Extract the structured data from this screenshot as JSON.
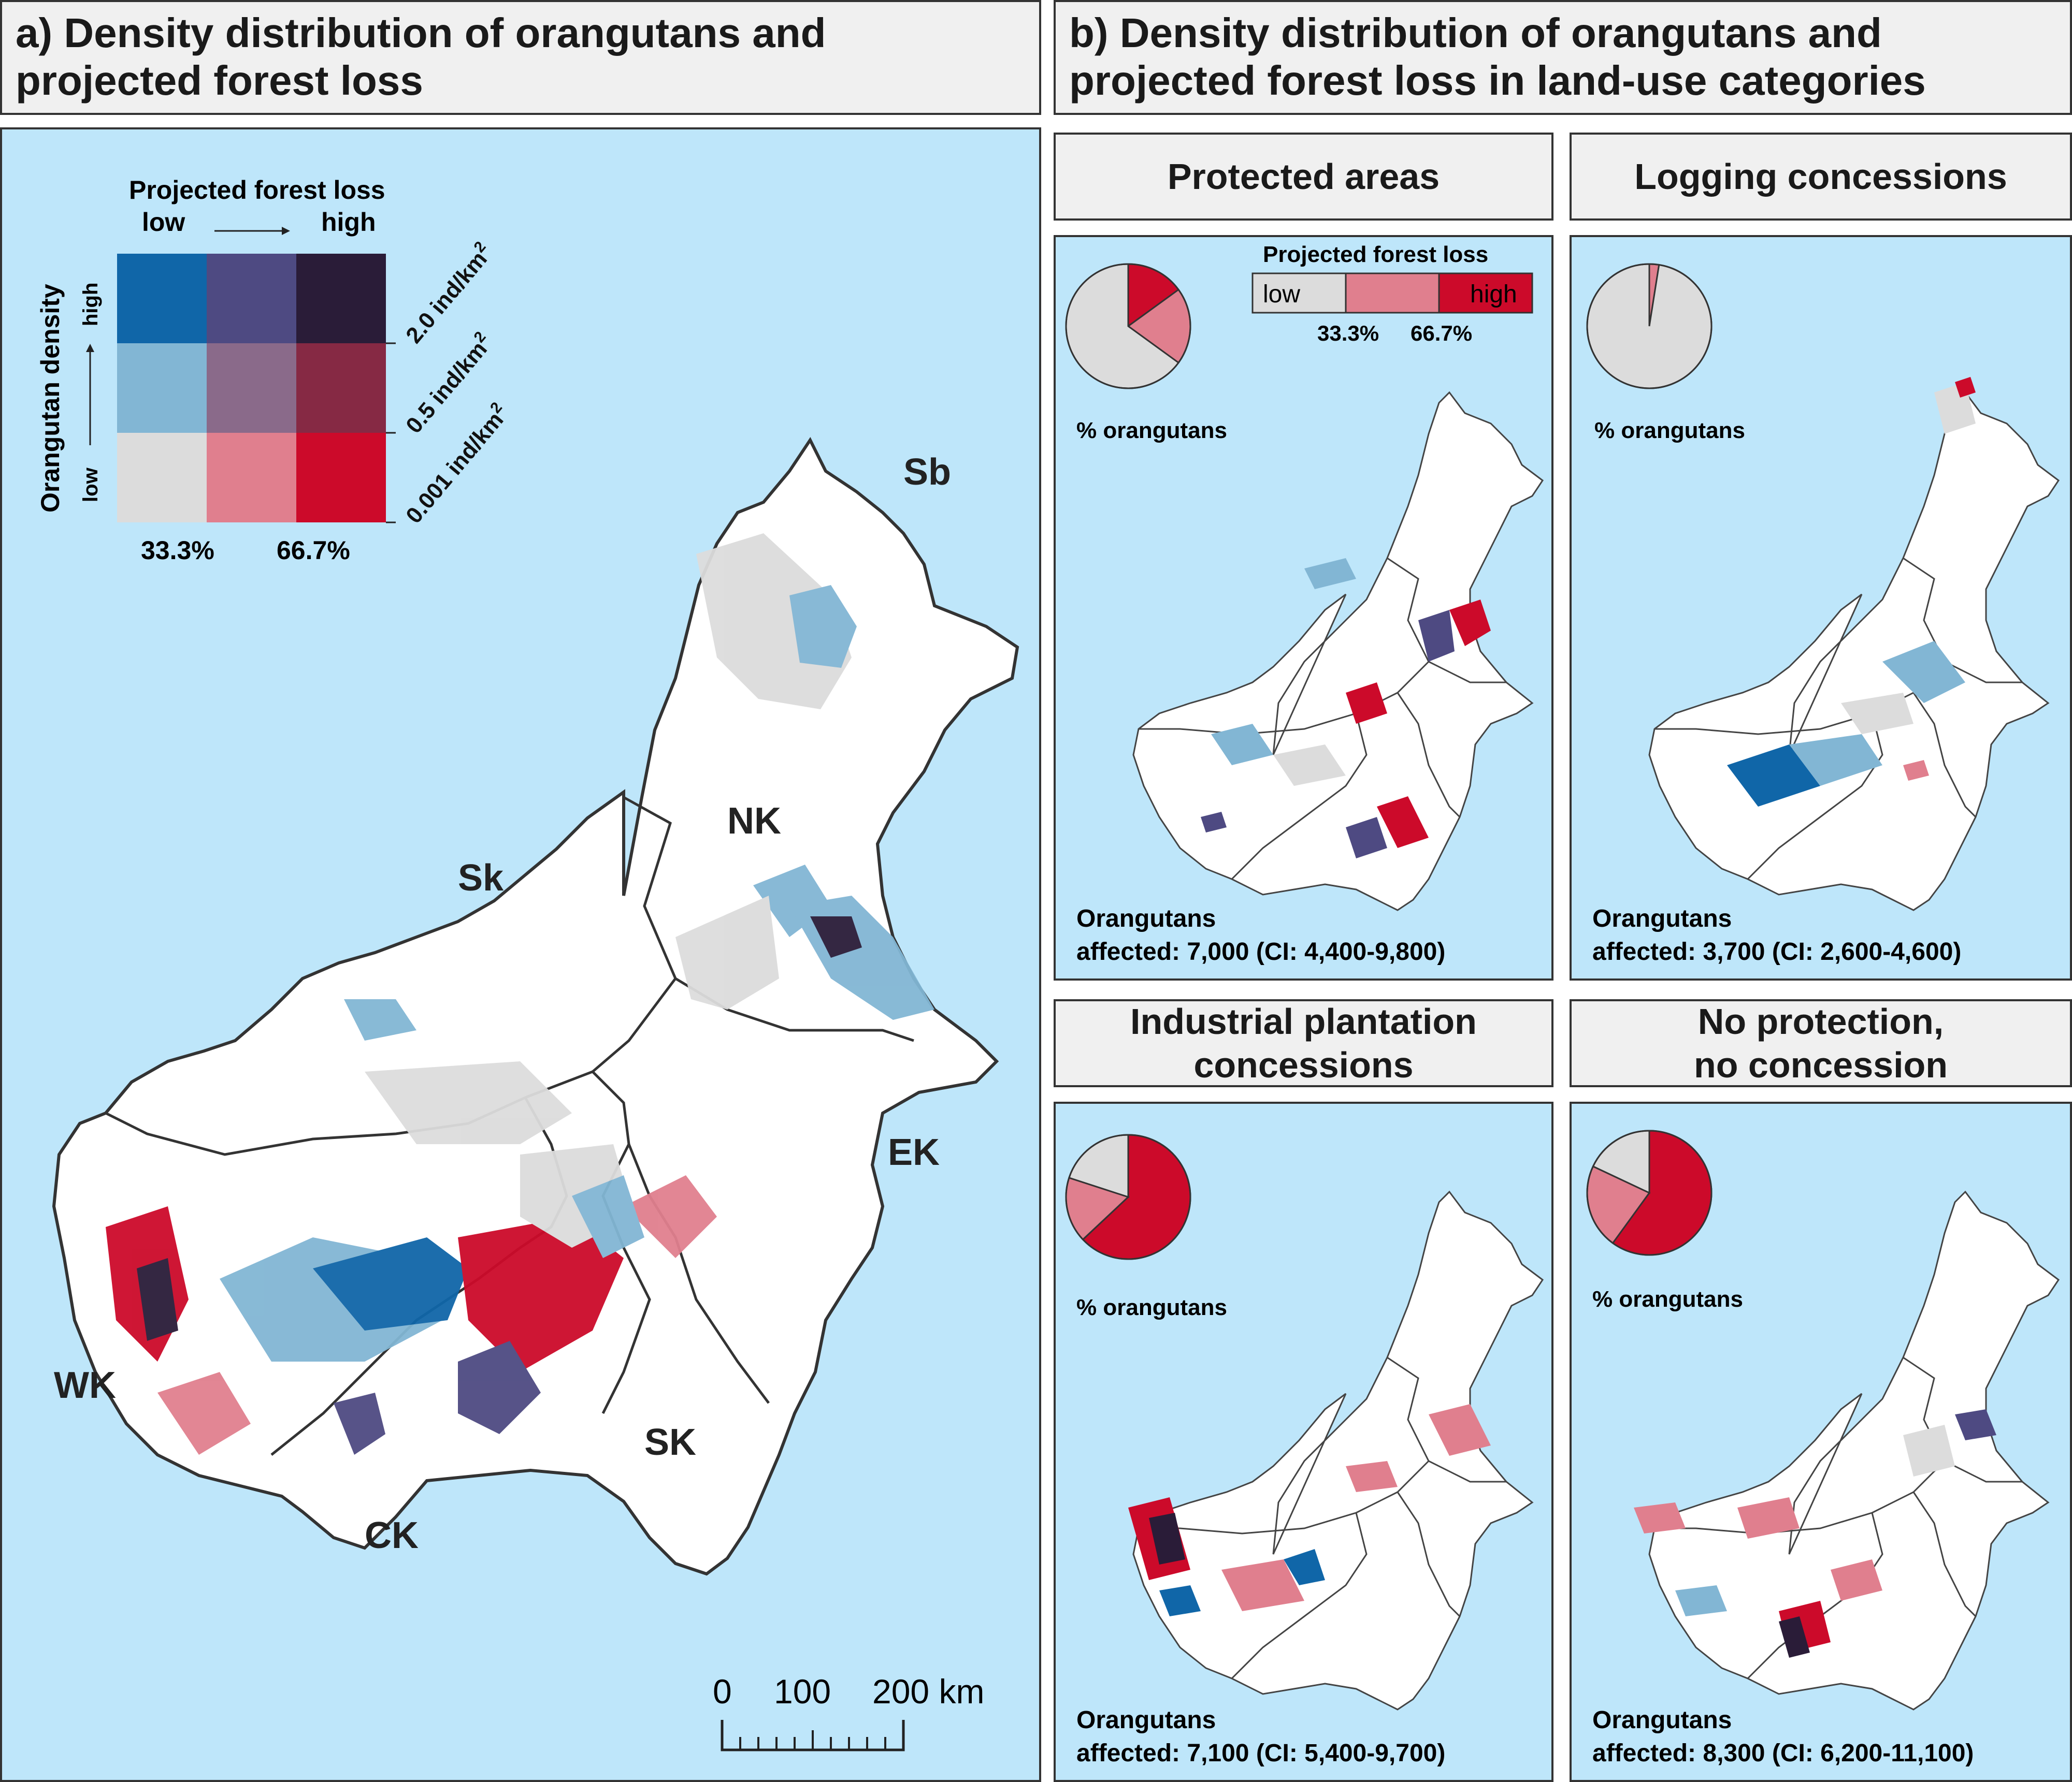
{
  "panel_a": {
    "title_line1": "a) Density distribution of orangutans and",
    "title_line2": "projected forest loss",
    "legend": {
      "top_title": "Projected forest loss",
      "low": "low",
      "high": "high",
      "side_title": "Orangutan density",
      "side_low": "low",
      "side_high": "high",
      "density_2": "2.0 ind/km",
      "density_05": "0.5 ind/km",
      "density_0001": "0.001 ind/km",
      "superscript": "2",
      "pct1": "33.3%",
      "pct2": "66.7%"
    },
    "regions": {
      "sb": "Sb",
      "nk": "NK",
      "sk_sarawak": "Sk",
      "ek": "EK",
      "wk": "WK",
      "sk_south": "SK",
      "ck": "CK"
    },
    "scale": {
      "t0": "0",
      "t100": "100",
      "t200": "200 km"
    }
  },
  "panel_b": {
    "title_line1": "b) Density distribution of orangutans and",
    "title_line2": "projected forest loss in land-use categories",
    "loss_legend": {
      "title": "Projected forest loss",
      "low": "low",
      "high": "high",
      "pct1": "33.3%",
      "pct2": "66.7%"
    },
    "categories": [
      {
        "title_line1": "Protected areas",
        "title_line2": "",
        "pie_label": "% orangutans",
        "affected_line1": "Orangutans",
        "affected_line2": "affected: 7,000 (CI: 4,400-9,800)",
        "pie_shares": [
          0.65,
          0.2,
          0.15
        ]
      },
      {
        "title_line1": "Logging concessions",
        "title_line2": "",
        "pie_label": "% orangutans",
        "affected_line1": "Orangutans",
        "affected_line2": "affected: 3,700 (CI: 2,600-4,600)",
        "pie_shares": [
          0.975,
          0.025,
          0.0
        ]
      },
      {
        "title_line1": "Industrial plantation",
        "title_line2": "concessions",
        "pie_label": "% orangutans",
        "affected_line1": "Orangutans",
        "affected_line2": "affected: 7,100 (CI: 5,400-9,700)",
        "pie_shares": [
          0.2,
          0.17,
          0.63
        ]
      },
      {
        "title_line1": "No protection,",
        "title_line2": "no concession",
        "pie_label": "% orangutans",
        "affected_line1": "Orangutans",
        "affected_line2": "affected: 8,300 (CI: 6,200-11,100)",
        "pie_shares": [
          0.18,
          0.22,
          0.6
        ]
      }
    ]
  },
  "colors": {
    "sea": "#bee6fa",
    "land": "#ffffff",
    "grid": [
      "#1066a8",
      "#4e4a82",
      "#2a1c38",
      "#82b6d4",
      "#8a6a8a",
      "#862944",
      "#dcdcdc",
      "#e07f8e",
      "#cc0a2a"
    ],
    "loss_low": "#dcdcdc",
    "loss_mid": "#e07f8e",
    "loss_high": "#cc0a2a"
  }
}
